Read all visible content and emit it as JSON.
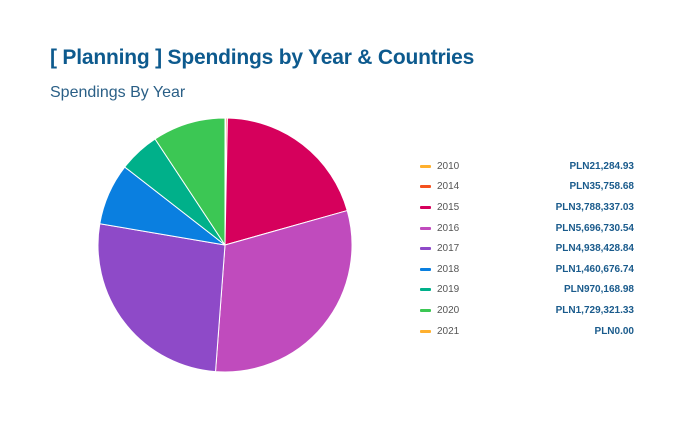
{
  "title": "[ Planning ] Spendings by Year & Countries",
  "chart_data": {
    "type": "pie",
    "title": "Spendings By Year",
    "currency": "PLN",
    "categories": [
      "2010",
      "2014",
      "2015",
      "2016",
      "2017",
      "2018",
      "2019",
      "2020",
      "2021"
    ],
    "values": [
      21284.93,
      35758.68,
      3788337.03,
      5696730.54,
      4938428.84,
      1460676.74,
      970168.98,
      1729321.33,
      0.0
    ],
    "labels": [
      "PLN21,284.93",
      "PLN35,758.68",
      "PLN3,788,337.03",
      "PLN5,696,730.54",
      "PLN4,938,428.84",
      "PLN1,460,676.74",
      "PLN970,168.98",
      "PLN1,729,321.33",
      "PLN0.00"
    ],
    "colors": [
      "#ffb02e",
      "#f4511e",
      "#d6005c",
      "#c04bbd",
      "#8e4ac8",
      "#0a7fe0",
      "#00b08a",
      "#3cc754",
      "#ffb02e"
    ],
    "legend": "right"
  }
}
